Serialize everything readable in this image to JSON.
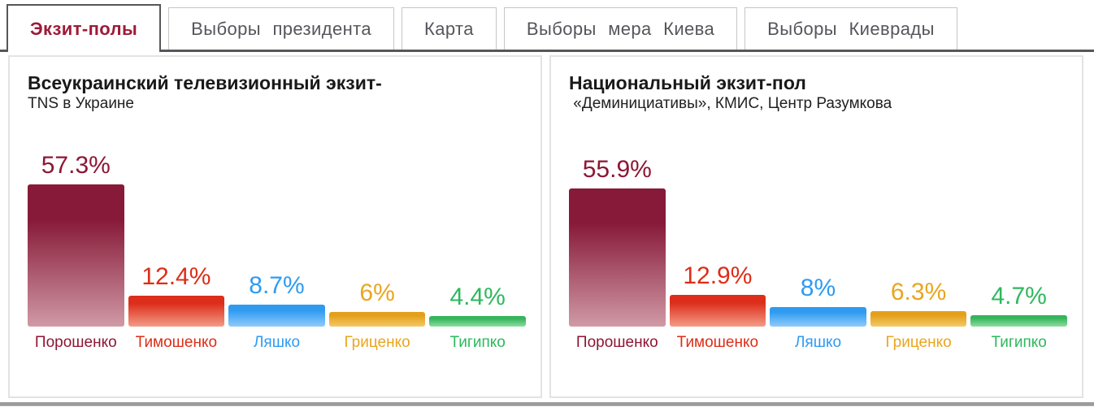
{
  "tabs": [
    {
      "label": "Экзит-полы",
      "active": true
    },
    {
      "label": "Выборы президента",
      "active": false
    },
    {
      "label": "Карта",
      "active": false
    },
    {
      "label": "Выборы мера Киева",
      "active": false
    },
    {
      "label": "Выборы Киеврады",
      "active": false
    }
  ],
  "accent_colors": {
    "active_tab_text": "#9d1b38",
    "inactive_tab_text": "#55565b",
    "tab_rule": "#56565a",
    "panel_border": "#e3e3e3",
    "bottom_bar": "#9a9a9a"
  },
  "party_colors": [
    {
      "key": "poroshenko",
      "text": "#8e1634",
      "top": "#871a38",
      "bottom": "#d099a5"
    },
    {
      "key": "tymoshenko",
      "text": "#dd2d17",
      "top": "#dc2e1b",
      "bottom": "#f39c87"
    },
    {
      "key": "lyashko",
      "text": "#2e9bf2",
      "top": "#2e9af0",
      "bottom": "#8fcbfa"
    },
    {
      "key": "hrytsenko",
      "text": "#e9a51f",
      "top": "#e4a01c",
      "bottom": "#f3c967"
    },
    {
      "key": "tihipko",
      "text": "#2db95c",
      "top": "#35b55a",
      "bottom": "#8edca2"
    }
  ],
  "chart_data": [
    {
      "type": "bar",
      "title": "Всеукраинский телевизионный экзит-",
      "subtitle": "TNS в Украине",
      "categories": [
        "Порошенко",
        "Тимошенко",
        "Ляшко",
        "Гриценко",
        "Тигипко"
      ],
      "values": [
        57.3,
        12.4,
        8.7,
        6,
        4.4
      ],
      "value_labels": [
        "57.3%",
        "12.4%",
        "8.7%",
        "6%",
        "4.4%"
      ],
      "xlabel": "",
      "ylabel": "",
      "ylim": [
        0,
        60
      ],
      "grid": false,
      "legend": "none"
    },
    {
      "type": "bar",
      "title": "Национальный экзит-пол",
      "subtitle": " «Деминициативы», КМИС, Центр Разумкова",
      "categories": [
        "Порошенко",
        "Тимошенко",
        "Ляшко",
        "Гриценко",
        "Тигипко"
      ],
      "values": [
        55.9,
        12.9,
        8,
        6.3,
        4.7
      ],
      "value_labels": [
        "55.9%",
        "12.9%",
        "8%",
        "6.3%",
        "4.7%"
      ],
      "xlabel": "",
      "ylabel": "",
      "ylim": [
        0,
        60
      ],
      "grid": false,
      "legend": "none"
    }
  ]
}
